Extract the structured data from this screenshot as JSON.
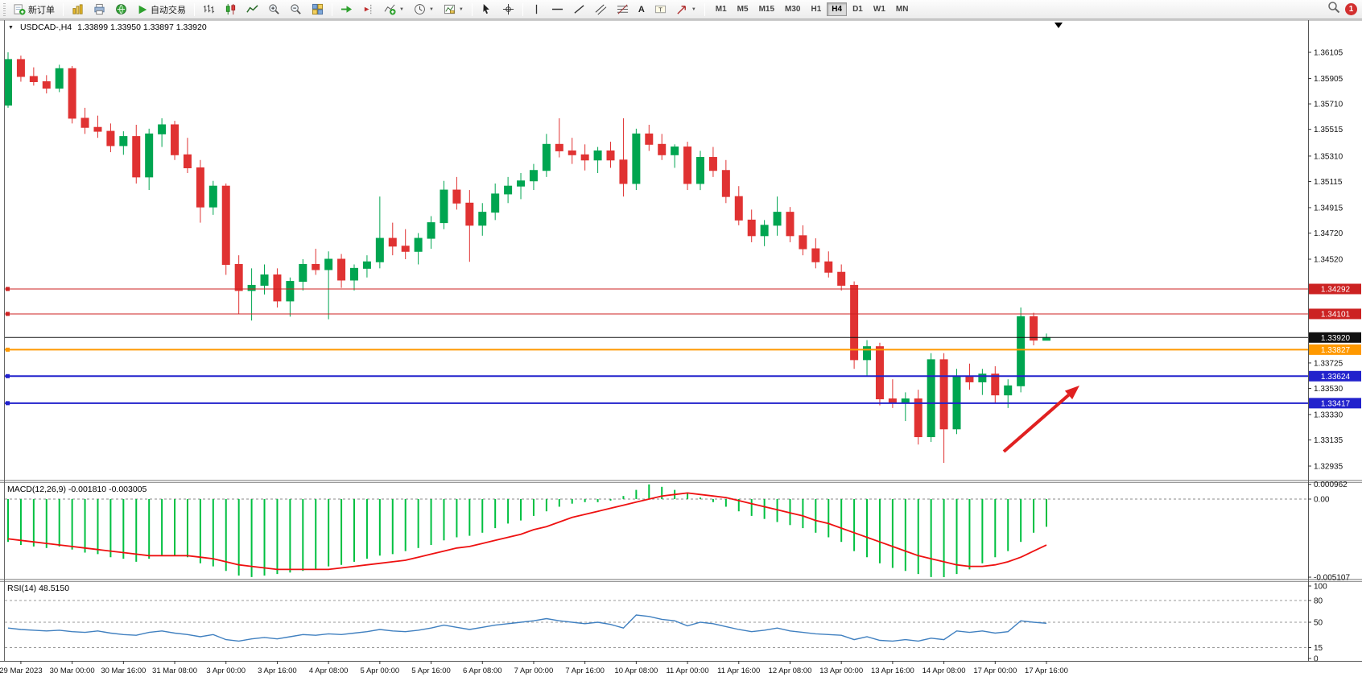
{
  "toolbar": {
    "new_order": "新订单",
    "auto_trading": "自动交易",
    "text_tool": "A",
    "timeframes": [
      "M1",
      "M5",
      "M15",
      "M30",
      "H1",
      "H4",
      "D1",
      "W1",
      "MN"
    ],
    "active_timeframe": "H4",
    "notification_count": "1"
  },
  "chart_header": {
    "symbol_period": "USDCAD-,H4",
    "ohlc": "1.33899 1.33950 1.33897 1.33920"
  },
  "price_axis_labels": [
    "1.36105",
    "1.35905",
    "1.35710",
    "1.35515",
    "1.35310",
    "1.35115",
    "1.34915",
    "1.34720",
    "1.34520",
    "1.33725",
    "1.33530",
    "1.33330",
    "1.33135",
    "1.32935"
  ],
  "price_lines": [
    {
      "price": 1.34292,
      "label": "1.34292",
      "color": "#cc2222",
      "width": 1,
      "handle": true
    },
    {
      "price": 1.34101,
      "label": "1.34101",
      "color": "#cc2222",
      "width": 1,
      "handle": true
    },
    {
      "price": 1.3392,
      "label": "1.33920",
      "color": "#111111",
      "width": 1,
      "handle": false
    },
    {
      "price": 1.33827,
      "label": "1.33827",
      "color": "#ff9900",
      "width": 2,
      "handle": true
    },
    {
      "price": 1.33624,
      "label": "1.33624",
      "color": "#2222cc",
      "width": 2,
      "handle": true
    },
    {
      "price": 1.33417,
      "label": "1.33417",
      "color": "#2222cc",
      "width": 2,
      "handle": true
    }
  ],
  "macd_panel": {
    "label": "MACD(12,26,9) -0.001810 -0.003005",
    "axis_labels": [
      {
        "v": 0.000962,
        "t": "0.000962"
      },
      {
        "v": 0,
        "t": "0.00"
      },
      {
        "v": -0.005107,
        "t": "-0.005107"
      }
    ]
  },
  "rsi_panel": {
    "label": "RSI(14) 48.5150",
    "axis_labels": [
      {
        "v": 100,
        "t": "100"
      },
      {
        "v": 80,
        "t": "80"
      },
      {
        "v": 50,
        "t": "50"
      },
      {
        "v": 15,
        "t": "15"
      },
      {
        "v": 0,
        "t": "0"
      }
    ],
    "dashed_levels": [
      80,
      50,
      15
    ]
  },
  "time_axis_labels": [
    "29 Mar 2023",
    "30 Mar 00:00",
    "30 Mar 16:00",
    "31 Mar 08:00",
    "3 Apr 00:00",
    "3 Apr 16:00",
    "4 Apr 08:00",
    "5 Apr 00:00",
    "5 Apr 16:00",
    "6 Apr 08:00",
    "7 Apr 00:00",
    "7 Apr 16:00",
    "10 Apr 08:00",
    "11 Apr 00:00",
    "11 Apr 16:00",
    "12 Apr 08:00",
    "13 Apr 00:00",
    "13 Apr 16:00",
    "14 Apr 08:00",
    "17 Apr 00:00",
    "17 Apr 16:00"
  ],
  "colors": {
    "bull": "#00a550",
    "bear": "#e03232",
    "macd_histogram": "#00c040",
    "macd_signal": "#ee1111",
    "rsi_line": "#4080c0",
    "arrow": "#e02020",
    "price_axis_text": "#111111"
  },
  "chart_data": {
    "type": "candlestick",
    "symbol": "USDCAD",
    "timeframe": "H4",
    "bars_per_time_label": 4,
    "first_labeled_bar": 1,
    "candles": [
      [
        1.357,
        1.36105,
        1.3568,
        1.3605
      ],
      [
        1.3605,
        1.3608,
        1.3588,
        1.3592
      ],
      [
        1.3592,
        1.3599,
        1.3585,
        1.3588
      ],
      [
        1.3588,
        1.3593,
        1.3579,
        1.3583
      ],
      [
        1.3583,
        1.3601,
        1.358,
        1.3598
      ],
      [
        1.3598,
        1.36,
        1.3556,
        1.356
      ],
      [
        1.356,
        1.3568,
        1.3548,
        1.3553
      ],
      [
        1.3553,
        1.3562,
        1.3545,
        1.355
      ],
      [
        1.355,
        1.3556,
        1.3534,
        1.3539
      ],
      [
        1.3539,
        1.355,
        1.3532,
        1.3546
      ],
      [
        1.3546,
        1.3555,
        1.351,
        1.3515
      ],
      [
        1.3515,
        1.3552,
        1.3505,
        1.3548
      ],
      [
        1.3548,
        1.356,
        1.3538,
        1.3555
      ],
      [
        1.3555,
        1.3558,
        1.3528,
        1.3532
      ],
      [
        1.3532,
        1.3545,
        1.3518,
        1.3522
      ],
      [
        1.3522,
        1.3528,
        1.348,
        1.3492
      ],
      [
        1.3492,
        1.3512,
        1.3486,
        1.3508
      ],
      [
        1.3508,
        1.351,
        1.344,
        1.3448
      ],
      [
        1.3448,
        1.3455,
        1.341,
        1.3428
      ],
      [
        1.3428,
        1.3445,
        1.3405,
        1.3432
      ],
      [
        1.3432,
        1.3448,
        1.3425,
        1.344
      ],
      [
        1.344,
        1.3445,
        1.3415,
        1.342
      ],
      [
        1.342,
        1.3438,
        1.3408,
        1.3435
      ],
      [
        1.3435,
        1.3452,
        1.3428,
        1.3448
      ],
      [
        1.3448,
        1.346,
        1.344,
        1.3444
      ],
      [
        1.3444,
        1.3458,
        1.3406,
        1.3452
      ],
      [
        1.3452,
        1.3456,
        1.343,
        1.3436
      ],
      [
        1.3436,
        1.3448,
        1.3428,
        1.3445
      ],
      [
        1.3445,
        1.3455,
        1.3438,
        1.345
      ],
      [
        1.345,
        1.35,
        1.3445,
        1.3468
      ],
      [
        1.3468,
        1.348,
        1.3455,
        1.3462
      ],
      [
        1.3462,
        1.3475,
        1.3452,
        1.3458
      ],
      [
        1.3458,
        1.3472,
        1.3448,
        1.3468
      ],
      [
        1.3468,
        1.3485,
        1.346,
        1.348
      ],
      [
        1.348,
        1.3512,
        1.3475,
        1.3505
      ],
      [
        1.3505,
        1.3515,
        1.349,
        1.3495
      ],
      [
        1.3495,
        1.3505,
        1.345,
        1.3478
      ],
      [
        1.3478,
        1.3495,
        1.347,
        1.3488
      ],
      [
        1.3488,
        1.351,
        1.3482,
        1.3502
      ],
      [
        1.3502,
        1.3515,
        1.3495,
        1.3508
      ],
      [
        1.3508,
        1.3518,
        1.3498,
        1.3512
      ],
      [
        1.3512,
        1.3525,
        1.3505,
        1.352
      ],
      [
        1.352,
        1.3548,
        1.3515,
        1.354
      ],
      [
        1.354,
        1.356,
        1.353,
        1.3535
      ],
      [
        1.3535,
        1.3545,
        1.3525,
        1.3532
      ],
      [
        1.3532,
        1.354,
        1.352,
        1.3528
      ],
      [
        1.3528,
        1.3538,
        1.3518,
        1.3535
      ],
      [
        1.3535,
        1.3542,
        1.3522,
        1.3528
      ],
      [
        1.3528,
        1.356,
        1.35,
        1.351
      ],
      [
        1.351,
        1.3552,
        1.3505,
        1.3548
      ],
      [
        1.3548,
        1.3555,
        1.3535,
        1.354
      ],
      [
        1.354,
        1.3548,
        1.3528,
        1.3532
      ],
      [
        1.3532,
        1.354,
        1.3522,
        1.3538
      ],
      [
        1.3538,
        1.3542,
        1.3505,
        1.351
      ],
      [
        1.351,
        1.3535,
        1.3505,
        1.353
      ],
      [
        1.353,
        1.3538,
        1.3515,
        1.352
      ],
      [
        1.352,
        1.3528,
        1.3495,
        1.35
      ],
      [
        1.35,
        1.3508,
        1.3478,
        1.3482
      ],
      [
        1.3482,
        1.349,
        1.3465,
        1.347
      ],
      [
        1.347,
        1.3482,
        1.3462,
        1.3478
      ],
      [
        1.3478,
        1.35,
        1.347,
        1.3488
      ],
      [
        1.3488,
        1.3492,
        1.3465,
        1.347
      ],
      [
        1.347,
        1.3478,
        1.3455,
        1.346
      ],
      [
        1.346,
        1.3468,
        1.3445,
        1.345
      ],
      [
        1.345,
        1.3458,
        1.3438,
        1.3442
      ],
      [
        1.3442,
        1.3448,
        1.3428,
        1.3432
      ],
      [
        1.3432,
        1.3435,
        1.3368,
        1.3375
      ],
      [
        1.3375,
        1.339,
        1.3362,
        1.3385
      ],
      [
        1.3385,
        1.3388,
        1.334,
        1.3345
      ],
      [
        1.3345,
        1.336,
        1.3338,
        1.3342
      ],
      [
        1.3342,
        1.335,
        1.3328,
        1.3345
      ],
      [
        1.3345,
        1.3352,
        1.331,
        1.3316
      ],
      [
        1.3316,
        1.338,
        1.3312,
        1.3375
      ],
      [
        1.3375,
        1.338,
        1.3296,
        1.3322
      ],
      [
        1.3322,
        1.3368,
        1.3318,
        1.3362
      ],
      [
        1.3362,
        1.3372,
        1.3352,
        1.3358
      ],
      [
        1.3358,
        1.3368,
        1.3348,
        1.3364
      ],
      [
        1.3364,
        1.337,
        1.3342,
        1.3348
      ],
      [
        1.3348,
        1.336,
        1.3338,
        1.3355
      ],
      [
        1.3355,
        1.3415,
        1.335,
        1.3408
      ],
      [
        1.3408,
        1.3411,
        1.3386,
        1.339
      ],
      [
        1.33899,
        1.3395,
        1.33897,
        1.3392
      ]
    ],
    "indicators": {
      "macd": {
        "histogram": [
          -0.0028,
          -0.003,
          -0.0031,
          -0.0032,
          -0.0031,
          -0.0033,
          -0.0035,
          -0.0036,
          -0.0038,
          -0.0039,
          -0.0041,
          -0.0039,
          -0.0037,
          -0.0037,
          -0.0038,
          -0.0042,
          -0.0044,
          -0.0047,
          -0.005,
          -0.0051,
          -0.005,
          -0.0049,
          -0.0048,
          -0.0047,
          -0.0046,
          -0.0044,
          -0.0043,
          -0.0041,
          -0.0039,
          -0.0037,
          -0.0036,
          -0.0034,
          -0.0032,
          -0.003,
          -0.0027,
          -0.0025,
          -0.0024,
          -0.0022,
          -0.0019,
          -0.0016,
          -0.0014,
          -0.0011,
          -0.0008,
          -0.0005,
          -0.0003,
          -0.0002,
          -0.0002,
          -0.0001,
          0.0002,
          0.0006,
          0.00096,
          0.0008,
          0.0006,
          0.0004,
          0.0001,
          -0.0002,
          -0.0005,
          -0.0008,
          -0.0011,
          -0.0013,
          -0.0015,
          -0.0017,
          -0.0019,
          -0.0022,
          -0.0025,
          -0.0028,
          -0.0034,
          -0.0038,
          -0.0042,
          -0.0045,
          -0.0047,
          -0.0049,
          -0.0051,
          -0.005107,
          -0.0049,
          -0.0046,
          -0.0042,
          -0.0038,
          -0.0034,
          -0.0028,
          -0.0022,
          -0.00181
        ],
        "signal": [
          -0.0026,
          -0.0027,
          -0.0028,
          -0.0029,
          -0.003,
          -0.0031,
          -0.0032,
          -0.0033,
          -0.0034,
          -0.0035,
          -0.0036,
          -0.0037,
          -0.0037,
          -0.0037,
          -0.0037,
          -0.0038,
          -0.0039,
          -0.0041,
          -0.0043,
          -0.0044,
          -0.0045,
          -0.0046,
          -0.0046,
          -0.0046,
          -0.0046,
          -0.0046,
          -0.0045,
          -0.0044,
          -0.0043,
          -0.0042,
          -0.0041,
          -0.004,
          -0.0038,
          -0.0036,
          -0.0034,
          -0.0032,
          -0.0031,
          -0.0029,
          -0.0027,
          -0.0025,
          -0.0023,
          -0.002,
          -0.0018,
          -0.0015,
          -0.0012,
          -0.001,
          -0.0008,
          -0.0006,
          -0.0004,
          -0.0002,
          0.0,
          0.0002,
          0.0003,
          0.0004,
          0.0003,
          0.0002,
          0.0001,
          -0.0001,
          -0.0003,
          -0.0005,
          -0.0007,
          -0.0009,
          -0.0011,
          -0.0014,
          -0.0016,
          -0.0019,
          -0.0022,
          -0.0025,
          -0.0028,
          -0.0031,
          -0.0034,
          -0.0037,
          -0.0039,
          -0.0041,
          -0.0043,
          -0.0044,
          -0.0044,
          -0.0043,
          -0.0041,
          -0.0038,
          -0.0034,
          -0.003005
        ],
        "current_main": -0.00181,
        "current_signal": -0.003005
      },
      "rsi": {
        "values": [
          42,
          40,
          39,
          38,
          39,
          37,
          36,
          38,
          35,
          33,
          32,
          36,
          38,
          35,
          33,
          30,
          33,
          26,
          24,
          27,
          29,
          27,
          30,
          33,
          32,
          34,
          33,
          35,
          37,
          40,
          38,
          37,
          39,
          42,
          46,
          43,
          40,
          43,
          46,
          48,
          50,
          52,
          55,
          52,
          50,
          48,
          50,
          47,
          42,
          60,
          58,
          54,
          52,
          45,
          50,
          48,
          44,
          40,
          37,
          39,
          42,
          38,
          36,
          34,
          33,
          32,
          26,
          30,
          25,
          24,
          26,
          24,
          28,
          26,
          38,
          36,
          38,
          35,
          37,
          52,
          50,
          48.52
        ],
        "current": 48.515
      }
    }
  }
}
